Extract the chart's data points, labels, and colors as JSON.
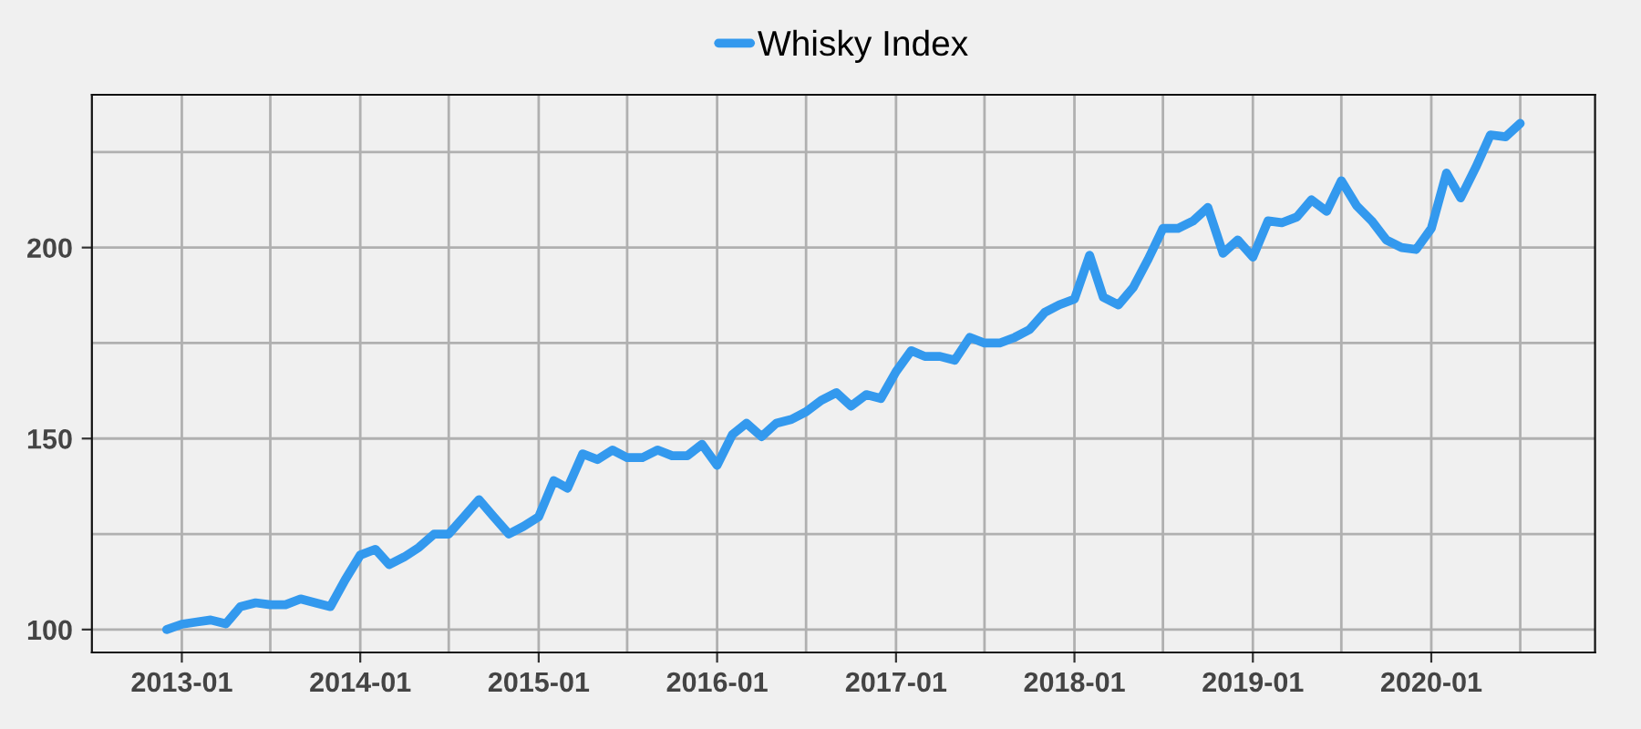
{
  "chart_data": {
    "type": "line",
    "x": [
      "2012-12",
      "2013-01",
      "2013-02",
      "2013-03",
      "2013-04",
      "2013-05",
      "2013-06",
      "2013-07",
      "2013-08",
      "2013-09",
      "2013-10",
      "2013-11",
      "2013-12",
      "2014-01",
      "2014-02",
      "2014-03",
      "2014-04",
      "2014-05",
      "2014-06",
      "2014-07",
      "2014-08",
      "2014-09",
      "2014-10",
      "2014-11",
      "2014-12",
      "2015-01",
      "2015-02",
      "2015-03",
      "2015-04",
      "2015-05",
      "2015-06",
      "2015-07",
      "2015-08",
      "2015-09",
      "2015-10",
      "2015-11",
      "2015-12",
      "2016-01",
      "2016-02",
      "2016-03",
      "2016-04",
      "2016-05",
      "2016-06",
      "2016-07",
      "2016-08",
      "2016-09",
      "2016-10",
      "2016-11",
      "2016-12",
      "2017-01",
      "2017-02",
      "2017-03",
      "2017-04",
      "2017-05",
      "2017-06",
      "2017-07",
      "2017-08",
      "2017-09",
      "2017-10",
      "2017-11",
      "2017-12",
      "2018-01",
      "2018-02",
      "2018-03",
      "2018-04",
      "2018-05",
      "2018-06",
      "2018-07",
      "2018-08",
      "2018-09",
      "2018-10",
      "2018-11",
      "2018-12",
      "2019-01",
      "2019-02",
      "2019-03",
      "2019-04",
      "2019-05",
      "2019-06",
      "2019-07",
      "2019-08",
      "2019-09",
      "2019-10",
      "2019-11",
      "2019-12",
      "2020-01",
      "2020-02",
      "2020-03",
      "2020-04",
      "2020-05",
      "2020-06",
      "2020-07"
    ],
    "series": [
      {
        "name": "Whisky Index",
        "color": "#3399ee",
        "values": [
          100,
          101.4,
          102,
          102.5,
          101.5,
          106,
          107,
          106.5,
          106.5,
          108,
          107,
          106,
          113,
          119.5,
          121,
          117,
          119,
          121.5,
          125,
          125,
          129.5,
          134,
          129.5,
          125,
          127,
          129.5,
          139,
          137,
          146,
          144.5,
          147,
          145,
          145,
          147,
          145.5,
          145.5,
          148.5,
          143,
          151,
          154,
          150.5,
          154,
          155,
          157,
          160,
          162,
          158.5,
          161.5,
          160.5,
          167.5,
          173,
          171.5,
          171.5,
          170.5,
          176.5,
          175,
          175,
          176.5,
          178.5,
          183,
          185,
          186.5,
          198,
          187,
          185,
          189.5,
          197,
          205,
          205,
          207,
          210.5,
          198.5,
          202,
          197.5,
          207,
          206.5,
          208,
          212.5,
          209.5,
          217.5,
          211,
          207,
          202,
          200,
          199.5,
          205,
          219.5,
          213,
          221,
          229.5,
          229,
          232.5
        ]
      }
    ],
    "xlim": [
      "2012-07",
      "2020-12"
    ],
    "xticks": [
      {
        "value": "2013-01",
        "label": "2013-01"
      },
      {
        "value": "2013-07",
        "label": null
      },
      {
        "value": "2014-01",
        "label": "2014-01"
      },
      {
        "value": "2014-07",
        "label": null
      },
      {
        "value": "2015-01",
        "label": "2015-01"
      },
      {
        "value": "2015-07",
        "label": null
      },
      {
        "value": "2016-01",
        "label": "2016-01"
      },
      {
        "value": "2016-07",
        "label": null
      },
      {
        "value": "2017-01",
        "label": "2017-01"
      },
      {
        "value": "2017-07",
        "label": null
      },
      {
        "value": "2018-01",
        "label": "2018-01"
      },
      {
        "value": "2018-07",
        "label": null
      },
      {
        "value": "2019-01",
        "label": "2019-01"
      },
      {
        "value": "2019-07",
        "label": null
      },
      {
        "value": "2020-01",
        "label": "2020-01"
      },
      {
        "value": "2020-07",
        "label": null
      }
    ],
    "ylim": [
      94,
      240
    ],
    "yticks": [
      100,
      {
        "value": 125,
        "label": null
      },
      150,
      {
        "value": 175,
        "label": null
      },
      200,
      {
        "value": 225,
        "label": null
      }
    ],
    "grid": true,
    "legend": "top",
    "line_style": "solid",
    "marker": "none"
  }
}
